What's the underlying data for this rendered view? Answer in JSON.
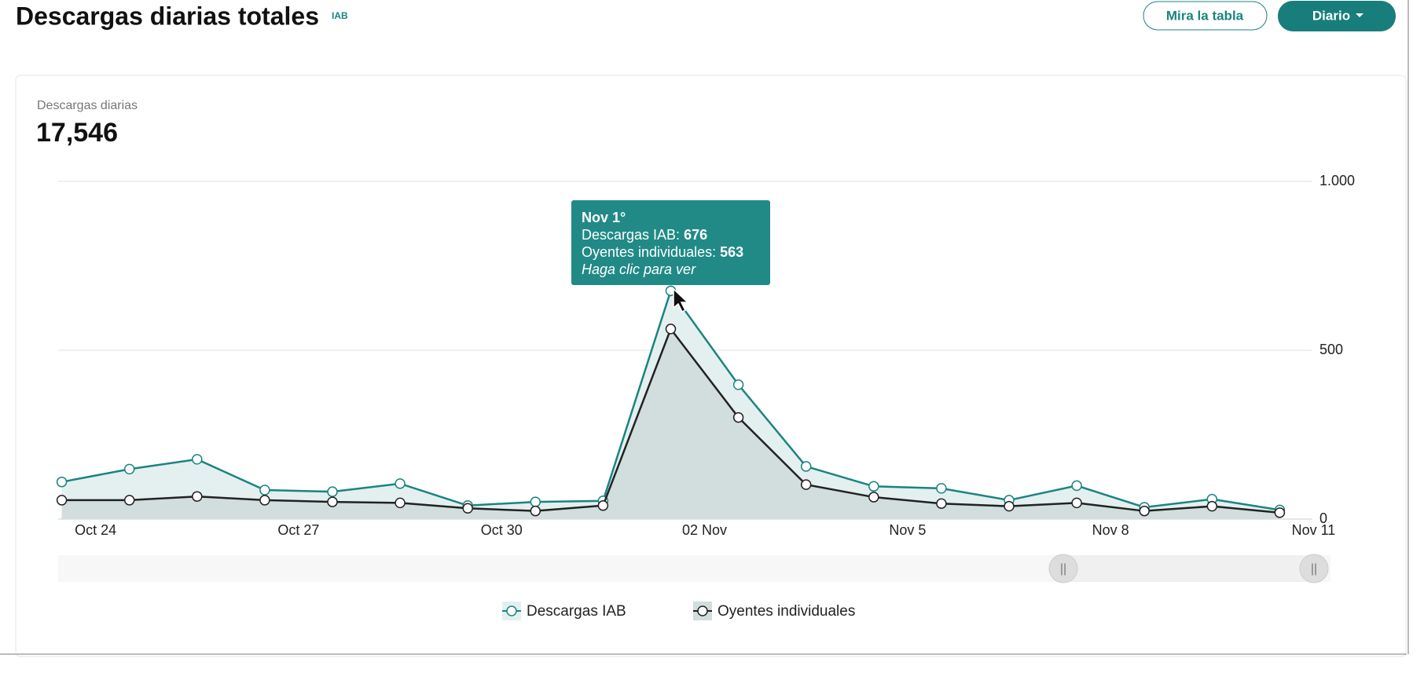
{
  "header": {
    "title": "Descargas diarias totales",
    "badge": "IAB",
    "buttons": [
      "Mira la tabla",
      "Diario"
    ]
  },
  "card": {
    "label": "Descargas diarias",
    "total": "17,546"
  },
  "chart_data": {
    "type": "line",
    "xticks": [
      {
        "value": 1,
        "label": "Oct 24"
      },
      {
        "value": 4,
        "label": "Oct 27"
      },
      {
        "value": 7,
        "label": "Oct 30"
      },
      {
        "value": 10,
        "label": "02 Nov"
      },
      {
        "value": 13,
        "label": "Nov 5"
      },
      {
        "value": 16,
        "label": "Nov 8"
      },
      {
        "value": 19,
        "label": "Nov 11"
      }
    ],
    "series": [
      {
        "name": "Descargas IAB",
        "color": "#1a8480",
        "fill": "#e3f0ef",
        "values": [
          110,
          148,
          177,
          86,
          81,
          105,
          40,
          51,
          54,
          676,
          398,
          156,
          97,
          91,
          56,
          99,
          35,
          59,
          27
        ]
      },
      {
        "name": "Oyentes individuales",
        "color": "#222222",
        "fill": "#d2dddd",
        "values": [
          56,
          56,
          67,
          56,
          51,
          48,
          32,
          24,
          40,
          563,
          301,
          102,
          65,
          46,
          38,
          48,
          24,
          38,
          19
        ]
      }
    ],
    "ylim": [
      0,
      1000
    ],
    "yticks": [
      0,
      500,
      {
        "value": 1000,
        "label": "1.000"
      }
    ],
    "grid": true,
    "tooltip": {
      "title": "Nov 1°",
      "rows": [
        "Descargas IAB:",
        "Oyentes individuales:"
      ],
      "hint": "Haga clic para ver",
      "index": 9
    }
  }
}
